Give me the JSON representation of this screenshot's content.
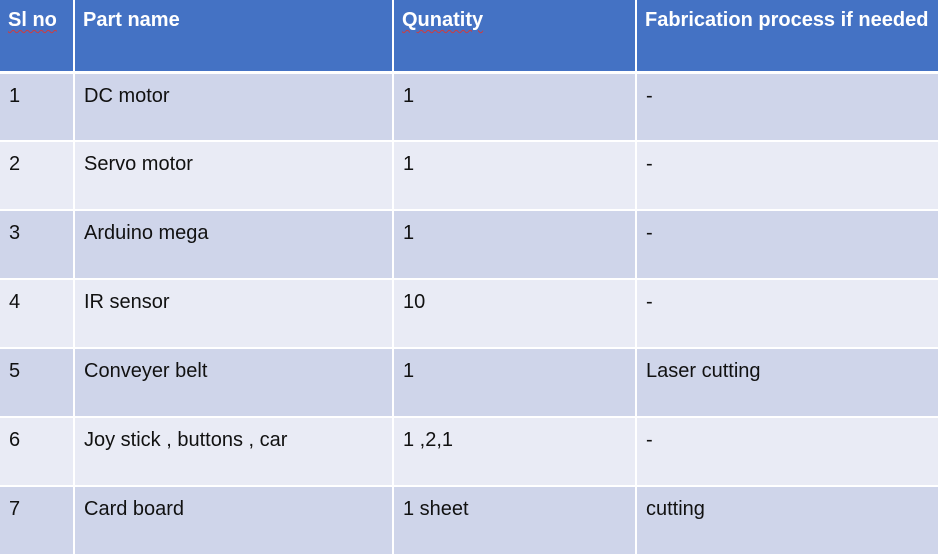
{
  "table": {
    "headers": [
      "Sl no",
      "Part name",
      "Qunatity",
      "Fabrication process if needed"
    ],
    "rows": [
      [
        "1",
        "DC motor",
        "1",
        "-"
      ],
      [
        "2",
        "Servo motor",
        "1",
        "-"
      ],
      [
        "3",
        "Arduino mega",
        "1",
        "-"
      ],
      [
        "4",
        "IR sensor",
        "10",
        "-"
      ],
      [
        "5",
        "Conveyer belt",
        "1",
        "Laser cutting"
      ],
      [
        "6",
        "Joy stick , buttons , car",
        "1 ,2,1",
        "-"
      ],
      [
        "7",
        "Card board",
        "1 sheet",
        "cutting"
      ]
    ]
  },
  "colors": {
    "header_bg": "#4472c4",
    "row_odd_bg": "#cfd5ea",
    "row_even_bg": "#e9ebf5"
  }
}
